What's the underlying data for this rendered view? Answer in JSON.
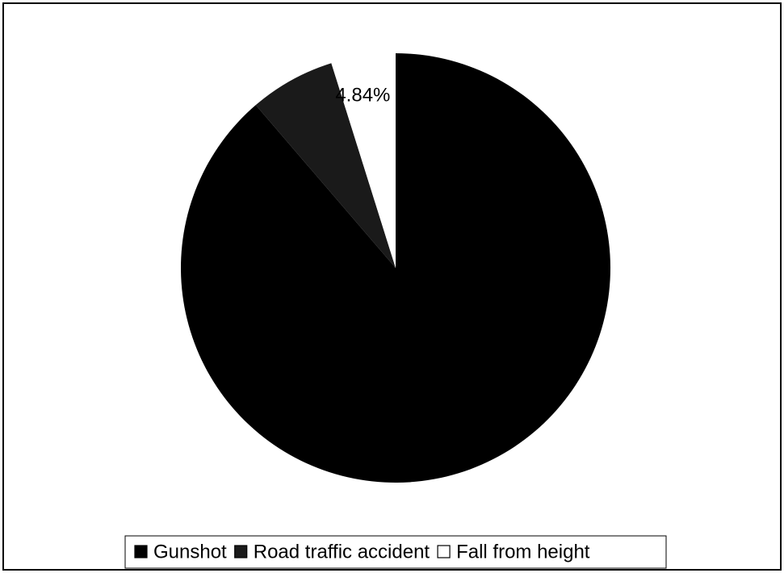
{
  "chart_data": {
    "type": "pie",
    "categories": [
      "Gunshot",
      "Road traffic accident",
      "Fall from height"
    ],
    "values": [
      88.71,
      6.45,
      4.84
    ],
    "value_labels": [
      null,
      null,
      "4.84%"
    ],
    "colors": [
      "#000000",
      "#1a1a1a",
      "#ffffff"
    ],
    "legend": "bottom"
  }
}
